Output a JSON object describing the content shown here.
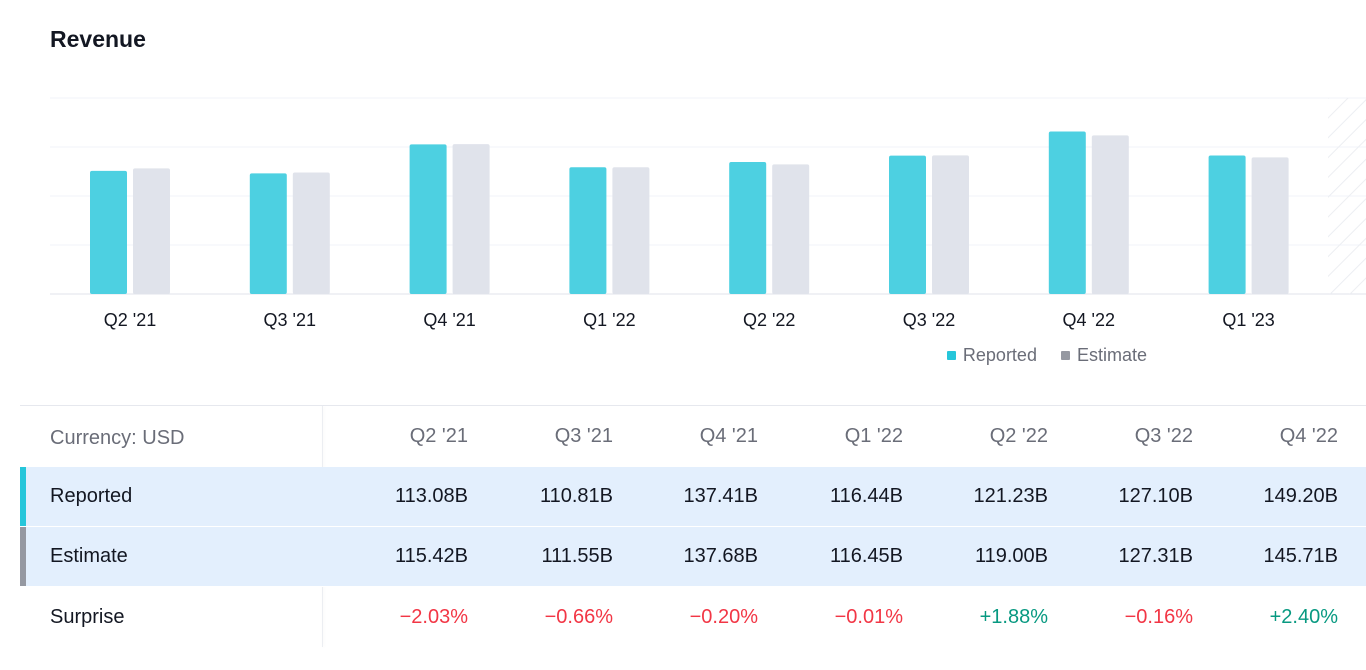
{
  "chart_data": {
    "type": "bar",
    "title": "Revenue",
    "categories": [
      "Q2 '21",
      "Q3 '21",
      "Q4 '21",
      "Q1 '22",
      "Q2 '22",
      "Q3 '22",
      "Q4 '22",
      "Q1 '23"
    ],
    "series": [
      {
        "name": "Reported",
        "color": "#4dd0e1",
        "values": [
          113.08,
          110.81,
          137.41,
          116.44,
          121.23,
          127.1,
          149.2,
          127.2
        ]
      },
      {
        "name": "Estimate",
        "color": "#e0e3eb",
        "values": [
          115.42,
          111.55,
          137.68,
          116.45,
          119.0,
          127.31,
          145.71,
          125.5
        ]
      }
    ],
    "unit": "B USD",
    "ylim": [
      0,
      180
    ],
    "grid": true,
    "legend": "bottom-right"
  },
  "legend": {
    "items": [
      {
        "label": "Reported",
        "color": "#26c6da"
      },
      {
        "label": "Estimate",
        "color": "#9598a1"
      }
    ]
  },
  "table": {
    "currency_label": "Currency: USD",
    "headers": [
      "Q2 '21",
      "Q3 '21",
      "Q4 '21",
      "Q1 '22",
      "Q2 '22",
      "Q3 '22",
      "Q4 '22"
    ],
    "rows": [
      {
        "label": "Reported",
        "accent": "#26c6da",
        "highlight": true,
        "cells": [
          {
            "text": "113.08B"
          },
          {
            "text": "110.81B"
          },
          {
            "text": "137.41B"
          },
          {
            "text": "116.44B"
          },
          {
            "text": "121.23B"
          },
          {
            "text": "127.10B"
          },
          {
            "text": "149.20B"
          }
        ]
      },
      {
        "label": "Estimate",
        "accent": "#9598a1",
        "highlight": true,
        "cells": [
          {
            "text": "115.42B"
          },
          {
            "text": "111.55B"
          },
          {
            "text": "137.68B"
          },
          {
            "text": "116.45B"
          },
          {
            "text": "119.00B"
          },
          {
            "text": "127.31B"
          },
          {
            "text": "145.71B"
          }
        ]
      },
      {
        "label": "Surprise",
        "accent": "",
        "highlight": false,
        "cells": [
          {
            "text": "−2.03%",
            "tone": "neg"
          },
          {
            "text": "−0.66%",
            "tone": "neg"
          },
          {
            "text": "−0.20%",
            "tone": "neg"
          },
          {
            "text": "−0.01%",
            "tone": "neg"
          },
          {
            "text": "+1.88%",
            "tone": "pos"
          },
          {
            "text": "−0.16%",
            "tone": "neg"
          },
          {
            "text": "+2.40%",
            "tone": "pos"
          }
        ]
      }
    ]
  }
}
